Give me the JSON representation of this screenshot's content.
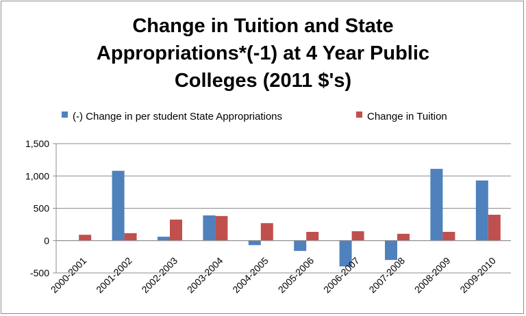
{
  "chart_data": {
    "type": "bar",
    "title_lines": [
      "Change in Tuition and State",
      "Appropriations*(-1) at 4 Year Public",
      "Colleges (2011 $'s)"
    ],
    "categories": [
      "2000-2001",
      "2001-2002",
      "2002-2003",
      "2003-2004",
      "2004-2005",
      "2005-2006",
      "2006-2007",
      "2007-2008",
      "2008-2009",
      "2009-2010"
    ],
    "series": [
      {
        "name": "(-) Change in per student State Appropriations",
        "color": "#4f81bd",
        "values": [
          0,
          1080,
          60,
          390,
          -70,
          -160,
          -400,
          -300,
          1110,
          930
        ]
      },
      {
        "name": "Change in Tuition",
        "color": "#c0504d",
        "values": [
          90,
          115,
          325,
          380,
          270,
          135,
          145,
          105,
          135,
          400
        ]
      }
    ],
    "y_ticks": [
      "1,500",
      "1,000",
      "500",
      "0",
      "-500"
    ],
    "ylim": [
      -500,
      1500
    ],
    "legend_position": "top",
    "grid": true
  }
}
